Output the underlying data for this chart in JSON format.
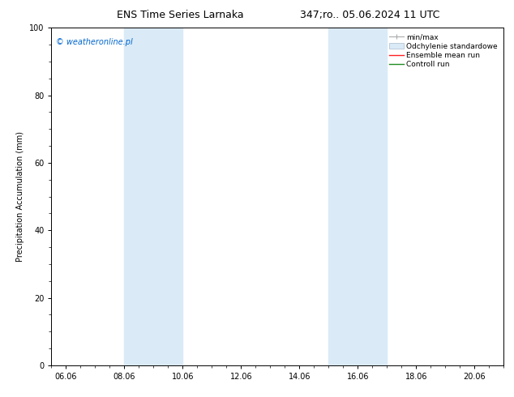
{
  "title_left": "ENS Time Series Larnaka",
  "title_right": "347;ro.. 05.06.2024 11 UTC",
  "ylabel": "Precipitation Accumulation (mm)",
  "watermark": "© weatheronline.pl",
  "watermark_color": "#0066cc",
  "background_color": "#ffffff",
  "plot_bg_color": "#ffffff",
  "ylim": [
    0,
    100
  ],
  "xlim_start": 5.5,
  "xlim_end": 21.0,
  "xtick_labels": [
    "06.06",
    "08.06",
    "10.06",
    "12.06",
    "14.06",
    "16.06",
    "18.06",
    "20.06"
  ],
  "xtick_positions": [
    6.0,
    8.0,
    10.0,
    12.0,
    14.0,
    16.0,
    18.0,
    20.0
  ],
  "ytick_positions": [
    0,
    20,
    40,
    60,
    80,
    100
  ],
  "shaded_bands": [
    {
      "x_start": 8.0,
      "x_end": 10.0,
      "color": "#daeaf7"
    },
    {
      "x_start": 15.0,
      "x_end": 17.0,
      "color": "#daeaf7"
    }
  ],
  "legend_labels": [
    "min/max",
    "Odchylenie standardowe",
    "Ensemble mean run",
    "Controll run"
  ],
  "title_fontsize": 9,
  "axis_fontsize": 7,
  "tick_fontsize": 7,
  "watermark_fontsize": 7,
  "legend_fontsize": 6.5,
  "fig_width": 6.34,
  "fig_height": 4.9,
  "dpi": 100
}
